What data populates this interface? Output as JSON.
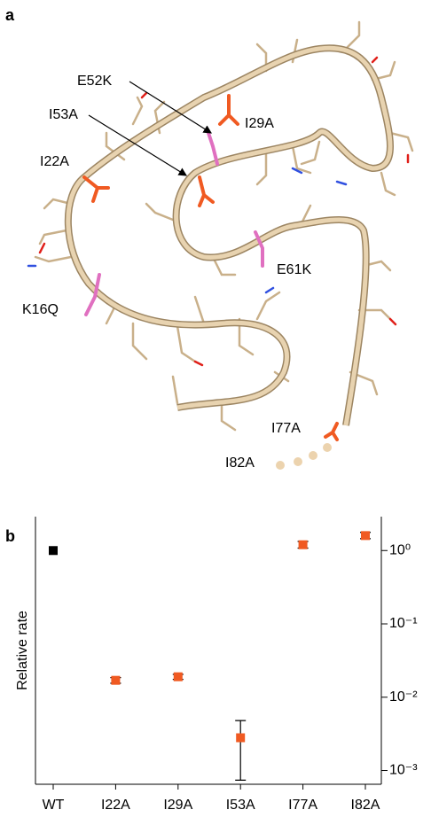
{
  "panels": [
    "a",
    "b"
  ],
  "structure": {
    "labels": [
      "E52K",
      "I53A",
      "I29A",
      "I22A",
      "E61K",
      "K16Q",
      "I77A",
      "I82A"
    ]
  },
  "chart_data": {
    "type": "scatter",
    "y_label": "Relative rate",
    "categories": [
      "WT",
      "I22A",
      "I29A",
      "I53A",
      "I77A",
      "I82A"
    ],
    "series": [
      {
        "values": [
          1.0,
          0.017,
          0.019,
          0.0028,
          1.2,
          1.6
        ],
        "lower": [
          null,
          0.0155,
          0.0175,
          0.00074,
          1.08,
          1.45
        ],
        "upper": [
          null,
          0.0185,
          0.0205,
          0.0048,
          1.33,
          1.77
        ],
        "colors": [
          "#000000",
          "#f05a22",
          "#f05a22",
          "#f05a22",
          "#f05a22",
          "#f05a22"
        ]
      }
    ],
    "log_y": true,
    "y_axis_side": "right",
    "ylim": [
      0.00065,
      2.9
    ],
    "yticks": [
      {
        "value": 1,
        "label": "10⁰"
      },
      {
        "value": 0.1,
        "label": "10⁻¹"
      },
      {
        "value": 0.01,
        "label": "10⁻²"
      },
      {
        "value": 0.001,
        "label": "10⁻³"
      }
    ]
  }
}
